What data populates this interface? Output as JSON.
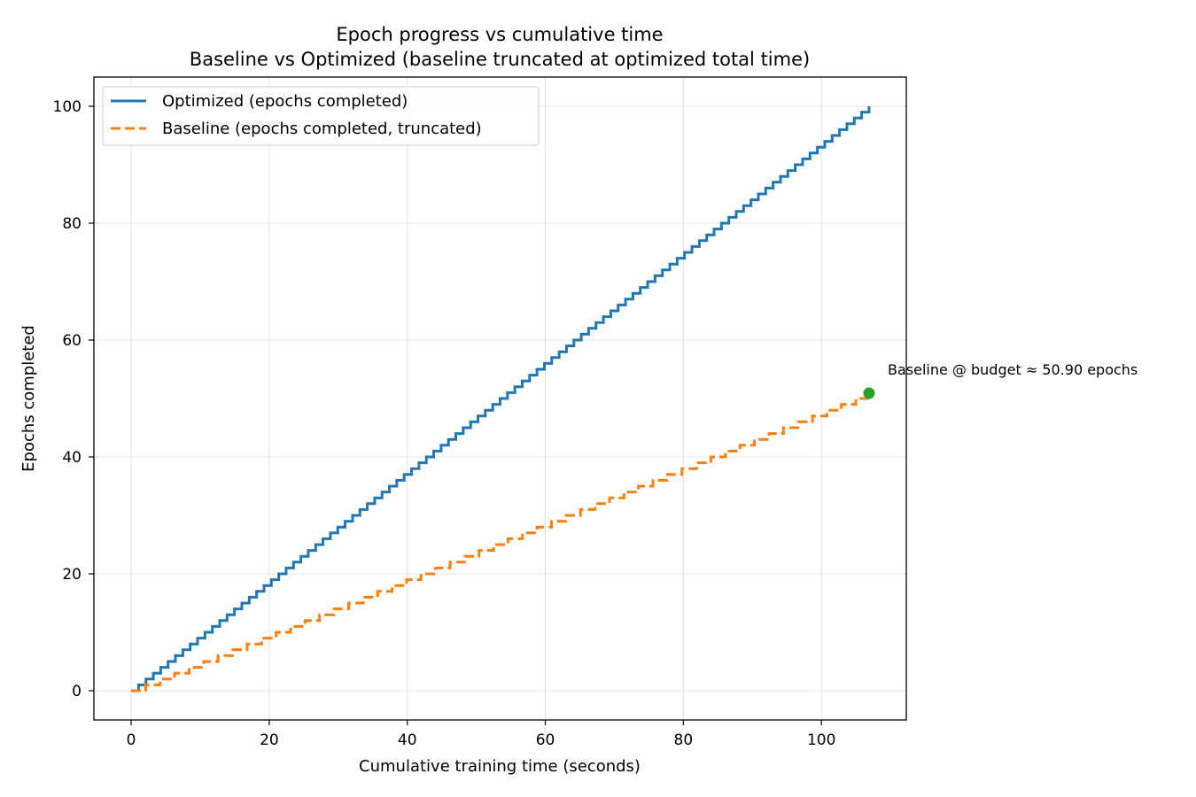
{
  "chart_data": {
    "type": "line",
    "title": "Epoch progress vs cumulative time",
    "subtitle": "Baseline vs Optimized (baseline truncated at optimized total time)",
    "xlabel": "Cumulative training time (seconds)",
    "ylabel": "Epochs completed",
    "xlim": [
      -5.4,
      112.3
    ],
    "ylim": [
      -5,
      105
    ],
    "x_ticks": [
      0,
      20,
      40,
      60,
      80,
      100
    ],
    "y_ticks": [
      0,
      20,
      40,
      60,
      80,
      100
    ],
    "grid": true,
    "legend_position": "top-left",
    "series": [
      {
        "name": "Optimized (epochs completed)",
        "color": "#1f77b4",
        "style": "solid",
        "step": true,
        "epoch_duration_seconds": 1.069,
        "start_time": 0,
        "end_time": 106.9,
        "final_epochs": 100
      },
      {
        "name": "Baseline (epochs completed, truncated)",
        "color": "#ff7f0e",
        "style": "dashed",
        "step": true,
        "epoch_duration_seconds": 2.1,
        "start_time": 0,
        "end_time": 106.9,
        "final_epochs": 50
      }
    ],
    "markers": [
      {
        "x": 106.9,
        "y": 50.9,
        "color": "#2ca02c"
      }
    ],
    "annotations": [
      {
        "text": "Baseline @ budget ≈ 50.90 epochs",
        "x": 106.9,
        "y": 50.9
      }
    ]
  }
}
